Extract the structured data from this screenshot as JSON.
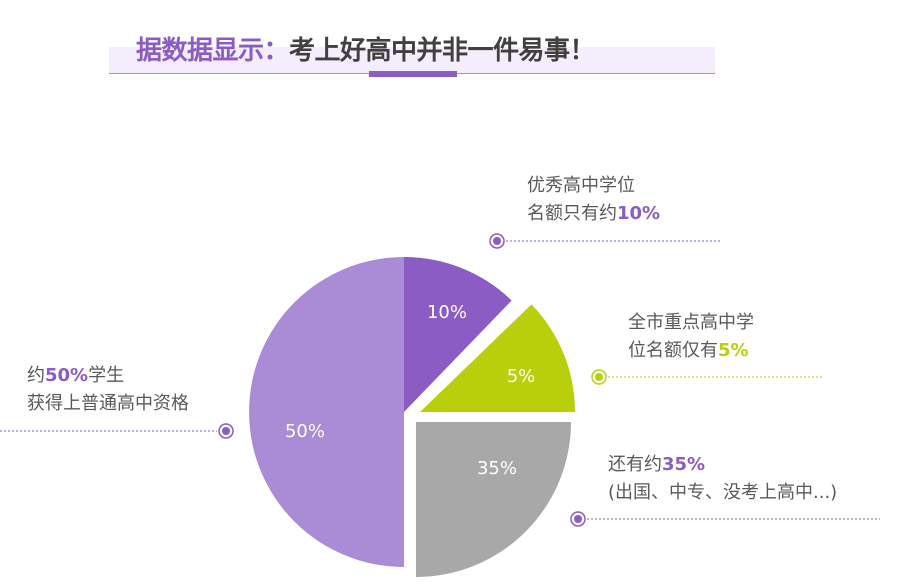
{
  "title": {
    "part1": "据数据显示：",
    "part2": "考上好高中并非一件易事！"
  },
  "chart_data": {
    "type": "pie",
    "slices": [
      {
        "label": "10%",
        "value": 10,
        "color": "#8a5cc4"
      },
      {
        "label": "5%",
        "value": 5,
        "color": "#b9cf0c"
      },
      {
        "label": "35%",
        "value": 35,
        "color": "#a8a8a8"
      },
      {
        "label": "50%",
        "value": 50,
        "color": "#a98bd6"
      }
    ],
    "annotations": [
      {
        "line1": "优秀高中学位",
        "line2_pre": "名额只有约",
        "highlight": "10%",
        "line2_post": "",
        "color": "#8a5cc4"
      },
      {
        "line1": "全市重点高中学",
        "line2_pre": "位名额仅有",
        "highlight": "5%",
        "line2_post": "",
        "color": "#b9cf0c"
      },
      {
        "line1_pre": "还有约",
        "highlight": "35%",
        "line2": "(出国、中专、没考上高中...)",
        "color": "#8a5cc4"
      },
      {
        "line1_pre": "约",
        "highlight": "50%",
        "line1_post": "学生",
        "line2": "获得上普通高中资格",
        "color": "#8a5cc4"
      }
    ]
  }
}
